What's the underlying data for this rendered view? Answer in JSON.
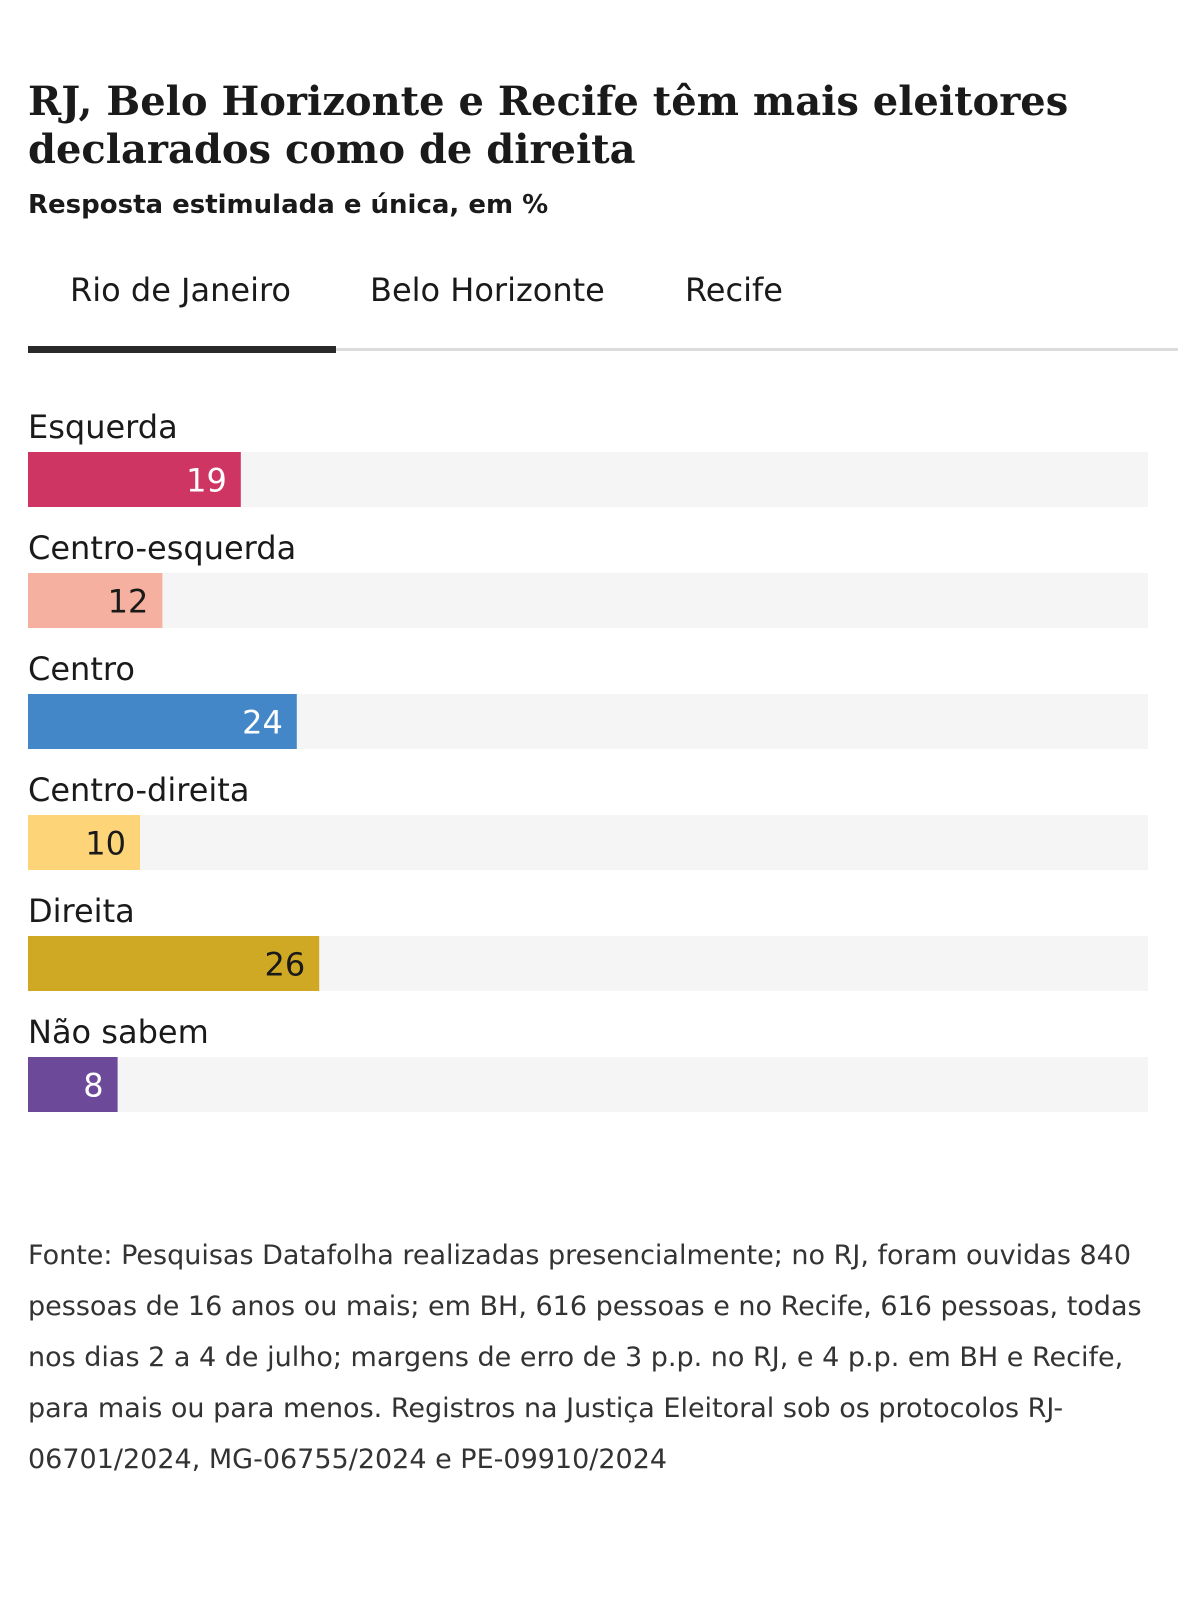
{
  "header": {
    "title": "RJ, Belo Horizonte e Recife têm mais eleitores declarados como de direita",
    "subtitle": "Resposta estimulada e única, em %"
  },
  "tabs": [
    {
      "label": "Rio de Janeiro",
      "selected": true
    },
    {
      "label": "Belo Horizonte",
      "selected": false
    },
    {
      "label": "Recife",
      "selected": false
    }
  ],
  "colors": {
    "track": "#f5f5f5",
    "tab_active": "#2a2a2a",
    "tab_baseline": "#dcdcdc"
  },
  "chart_data": {
    "type": "bar",
    "orientation": "horizontal",
    "categories": [
      "Esquerda",
      "Centro-esquerda",
      "Centro",
      "Centro-direita",
      "Direita",
      "Não sabem"
    ],
    "values": [
      19,
      12,
      24,
      10,
      26,
      8
    ],
    "bar_colors": [
      "#cf3563",
      "#f6b09f",
      "#4387c8",
      "#fed479",
      "#d0a924",
      "#6d4a99"
    ],
    "label_colors": [
      "#ffffff",
      "#1a1a1a",
      "#ffffff",
      "#1a1a1a",
      "#1a1a1a",
      "#ffffff"
    ],
    "xlim": [
      0,
      100
    ],
    "title": "",
    "xlabel": "",
    "ylabel": "",
    "grid": false,
    "legend": "none"
  },
  "footer": {
    "source": "Fonte: Pesquisas Datafolha realizadas presencialmente; no RJ, foram ouvidas 840 pessoas de 16 anos ou mais; em BH, 616 pessoas e no Recife, 616 pessoas, todas nos dias 2 a 4 de julho; margens de erro de 3 p.p. no RJ, e 4 p.p. em BH e Recife, para mais ou para menos. Registros na Justiça Eleitoral sob os protocolos RJ-06701/2024, MG-06755/2024 e PE-09910/2024"
  }
}
